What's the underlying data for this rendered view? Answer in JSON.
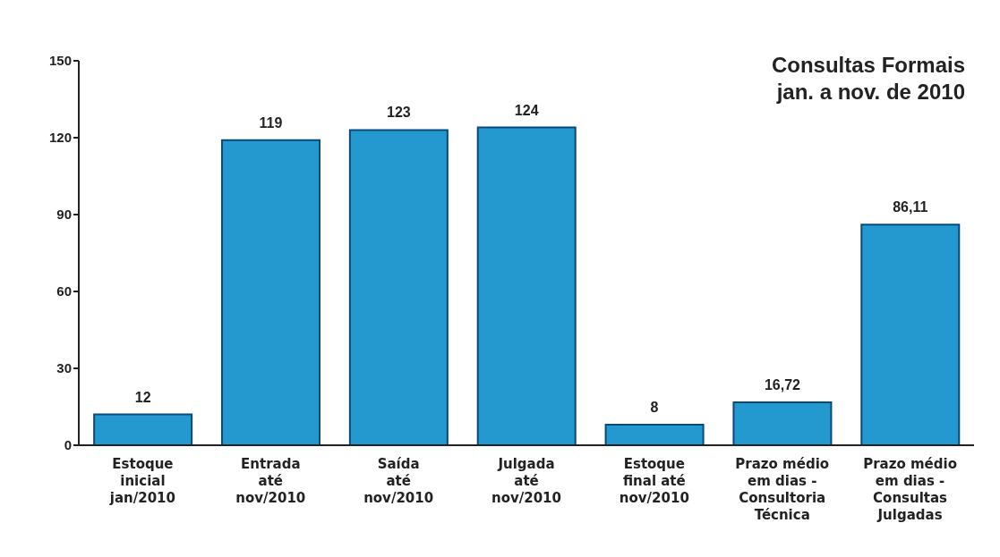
{
  "chart_data": {
    "type": "bar",
    "categories": [
      "Estoque\ninicial\njan/2010",
      "Entrada\naté\nnov/2010",
      "Saída\naté\nnov/2010",
      "Julgada\naté\nnov/2010",
      "Estoque\nfinal até\nnov/2010",
      "Prazo médio\nem dias -\nConsultoria\nTécnica",
      "Prazo médio\nem dias -\nConsultas\nJulgadas"
    ],
    "values": [
      12,
      119,
      123,
      124,
      8,
      16.72,
      86.11
    ],
    "value_labels": [
      "12",
      "119",
      "123",
      "124",
      "8",
      "16,72",
      "86,11"
    ],
    "color": "#2399d0",
    "ylim": [
      0,
      150
    ],
    "yticks": [
      0,
      30,
      60,
      90,
      120,
      150
    ],
    "annotations": [
      "Consultas Formais\njan. a nov. de 2010"
    ]
  }
}
